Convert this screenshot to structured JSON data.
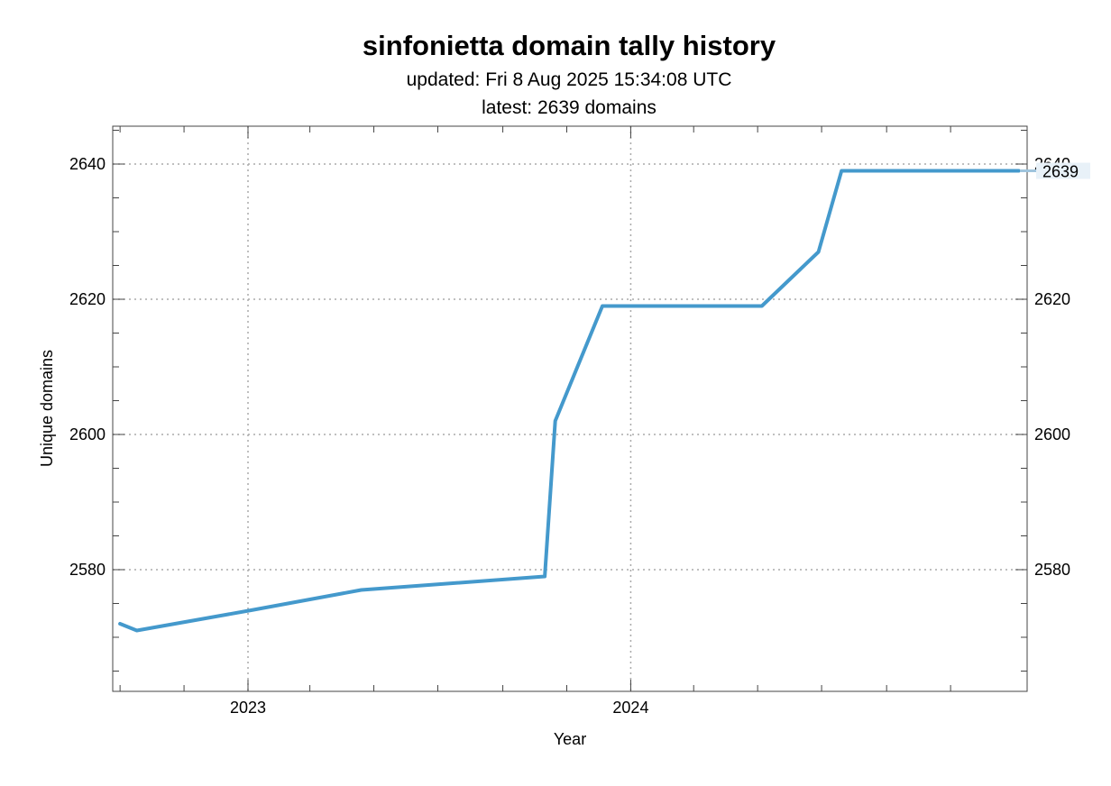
{
  "chart_data": {
    "type": "line",
    "title": "sinfonietta domain tally history",
    "subtitle_lines": [
      "updated: Fri 8 Aug 2025 15:34:08 UTC",
      "latest: 2639 domains"
    ],
    "xlabel": "Year",
    "ylabel": "Unique domains",
    "x_ticks": [
      {
        "label": "2023",
        "date": "2023-01-01"
      },
      {
        "label": "2024",
        "date": "2024-01-01"
      }
    ],
    "y_ticks": [
      2580,
      2600,
      2620,
      2640
    ],
    "xlim": [
      "2022-08-25",
      "2025-01-13"
    ],
    "ylim": [
      2562.0,
      2645.6
    ],
    "grid": true,
    "latest_marker_label": "2639",
    "series": [
      {
        "color": "#4499cc",
        "points": [
          {
            "date": "2022-09-01",
            "value": 2572
          },
          {
            "date": "2022-09-17",
            "value": 2571
          },
          {
            "date": "2023-01-04",
            "value": 2574
          },
          {
            "date": "2023-04-19",
            "value": 2577
          },
          {
            "date": "2023-10-11",
            "value": 2579
          },
          {
            "date": "2023-10-21",
            "value": 2602
          },
          {
            "date": "2023-12-05",
            "value": 2619
          },
          {
            "date": "2024-02-14",
            "value": 2619
          },
          {
            "date": "2024-05-05",
            "value": 2619
          },
          {
            "date": "2024-06-28",
            "value": 2627
          },
          {
            "date": "2024-07-20",
            "value": 2639
          },
          {
            "date": "2025-01-05",
            "value": 2639
          }
        ]
      }
    ]
  }
}
